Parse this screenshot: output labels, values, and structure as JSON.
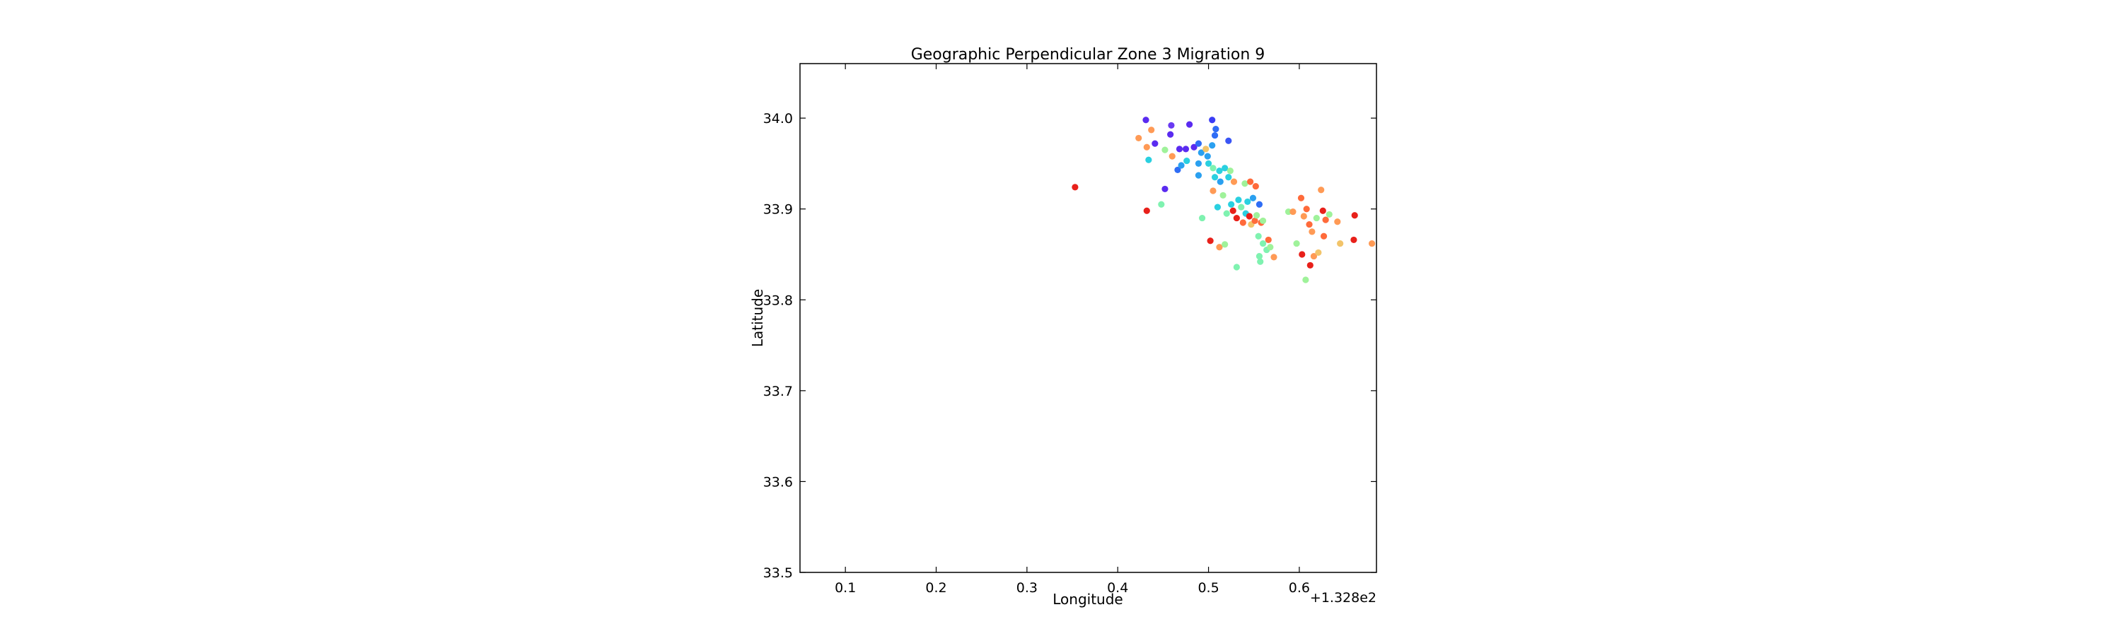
{
  "chart_data": {
    "type": "scatter",
    "title": "Geographic Perpendicular Zone 3 Migration 9",
    "xlabel": "Longitude",
    "ylabel": "Latitude",
    "x_offset_label": "+1.328e2",
    "xlim": [
      0.05,
      0.685
    ],
    "ylim": [
      33.5,
      34.06
    ],
    "xticks": [
      0.1,
      0.2,
      0.3,
      0.4,
      0.5,
      0.6
    ],
    "xtick_labels": [
      "0.1",
      "0.2",
      "0.3",
      "0.4",
      "0.5",
      "0.6"
    ],
    "yticks": [
      33.5,
      33.6,
      33.7,
      33.8,
      33.9,
      34.0
    ],
    "ytick_labels": [
      "33.5",
      "33.6",
      "33.7",
      "33.8",
      "33.9",
      "34.0"
    ],
    "grid": false,
    "colormap": "rainbow",
    "points": [
      {
        "x": 0.353,
        "y": 33.924,
        "color": "#e8201a"
      },
      {
        "x": 0.431,
        "y": 33.998,
        "color": "#5a2bf0"
      },
      {
        "x": 0.441,
        "y": 33.972,
        "color": "#5a2bf0"
      },
      {
        "x": 0.459,
        "y": 33.992,
        "color": "#6a3af2"
      },
      {
        "x": 0.458,
        "y": 33.982,
        "color": "#5a2bf0"
      },
      {
        "x": 0.479,
        "y": 33.993,
        "color": "#5a2bf0"
      },
      {
        "x": 0.504,
        "y": 33.998,
        "color": "#3a3cf5"
      },
      {
        "x": 0.508,
        "y": 33.988,
        "color": "#2f6df5"
      },
      {
        "x": 0.507,
        "y": 33.981,
        "color": "#2f6df5"
      },
      {
        "x": 0.522,
        "y": 33.975,
        "color": "#3a55f5"
      },
      {
        "x": 0.504,
        "y": 33.97,
        "color": "#2aa0f0"
      },
      {
        "x": 0.423,
        "y": 33.978,
        "color": "#ff9a55"
      },
      {
        "x": 0.437,
        "y": 33.987,
        "color": "#ff9a55"
      },
      {
        "x": 0.432,
        "y": 33.968,
        "color": "#ff9a55"
      },
      {
        "x": 0.452,
        "y": 33.965,
        "color": "#9ff29a"
      },
      {
        "x": 0.46,
        "y": 33.958,
        "color": "#ff9a55"
      },
      {
        "x": 0.468,
        "y": 33.966,
        "color": "#5a2bf0"
      },
      {
        "x": 0.475,
        "y": 33.966,
        "color": "#5a2bf0"
      },
      {
        "x": 0.484,
        "y": 33.968,
        "color": "#5a2bf0"
      },
      {
        "x": 0.489,
        "y": 33.972,
        "color": "#2f6df5"
      },
      {
        "x": 0.492,
        "y": 33.962,
        "color": "#2aa0f0"
      },
      {
        "x": 0.497,
        "y": 33.966,
        "color": "#f2c46a"
      },
      {
        "x": 0.499,
        "y": 33.958,
        "color": "#2aa0f0"
      },
      {
        "x": 0.434,
        "y": 33.954,
        "color": "#2ad0e0"
      },
      {
        "x": 0.466,
        "y": 33.943,
        "color": "#2f6df5"
      },
      {
        "x": 0.47,
        "y": 33.948,
        "color": "#2aa0f0"
      },
      {
        "x": 0.476,
        "y": 33.953,
        "color": "#2ad0e0"
      },
      {
        "x": 0.489,
        "y": 33.95,
        "color": "#2aa0f0"
      },
      {
        "x": 0.489,
        "y": 33.937,
        "color": "#2aa0f0"
      },
      {
        "x": 0.5,
        "y": 33.95,
        "color": "#2ad0e0"
      },
      {
        "x": 0.505,
        "y": 33.945,
        "color": "#7ff2b0"
      },
      {
        "x": 0.512,
        "y": 33.942,
        "color": "#2ad0e0"
      },
      {
        "x": 0.518,
        "y": 33.945,
        "color": "#2ad0e0"
      },
      {
        "x": 0.524,
        "y": 33.942,
        "color": "#9ff29a"
      },
      {
        "x": 0.507,
        "y": 33.935,
        "color": "#2ad0e0"
      },
      {
        "x": 0.513,
        "y": 33.93,
        "color": "#2aa0f0"
      },
      {
        "x": 0.522,
        "y": 33.935,
        "color": "#2ad0e0"
      },
      {
        "x": 0.528,
        "y": 33.93,
        "color": "#ff9a55"
      },
      {
        "x": 0.54,
        "y": 33.928,
        "color": "#9ff29a"
      },
      {
        "x": 0.546,
        "y": 33.93,
        "color": "#ff6a3a"
      },
      {
        "x": 0.552,
        "y": 33.925,
        "color": "#ff6a3a"
      },
      {
        "x": 0.452,
        "y": 33.922,
        "color": "#5a2bf0"
      },
      {
        "x": 0.432,
        "y": 33.898,
        "color": "#e8201a"
      },
      {
        "x": 0.448,
        "y": 33.905,
        "color": "#7ff2b0"
      },
      {
        "x": 0.493,
        "y": 33.89,
        "color": "#7ff2b0"
      },
      {
        "x": 0.505,
        "y": 33.92,
        "color": "#ff9a55"
      },
      {
        "x": 0.51,
        "y": 33.902,
        "color": "#2ad0e0"
      },
      {
        "x": 0.516,
        "y": 33.915,
        "color": "#9ff29a"
      },
      {
        "x": 0.52,
        "y": 33.895,
        "color": "#7ff2b0"
      },
      {
        "x": 0.525,
        "y": 33.905,
        "color": "#2ad0e0"
      },
      {
        "x": 0.527,
        "y": 33.898,
        "color": "#e8201a"
      },
      {
        "x": 0.531,
        "y": 33.89,
        "color": "#e8201a"
      },
      {
        "x": 0.533,
        "y": 33.91,
        "color": "#2ad0e0"
      },
      {
        "x": 0.536,
        "y": 33.902,
        "color": "#7ff2b0"
      },
      {
        "x": 0.538,
        "y": 33.885,
        "color": "#ff6a3a"
      },
      {
        "x": 0.541,
        "y": 33.895,
        "color": "#2ad0e0"
      },
      {
        "x": 0.543,
        "y": 33.908,
        "color": "#2ad0e0"
      },
      {
        "x": 0.545,
        "y": 33.892,
        "color": "#e8201a"
      },
      {
        "x": 0.547,
        "y": 33.883,
        "color": "#f2c46a"
      },
      {
        "x": 0.549,
        "y": 33.912,
        "color": "#2aa0f0"
      },
      {
        "x": 0.551,
        "y": 33.887,
        "color": "#ff6a3a"
      },
      {
        "x": 0.553,
        "y": 33.893,
        "color": "#9ff29a"
      },
      {
        "x": 0.556,
        "y": 33.905,
        "color": "#2f6df5"
      },
      {
        "x": 0.558,
        "y": 33.885,
        "color": "#ff6a3a"
      },
      {
        "x": 0.56,
        "y": 33.887,
        "color": "#9ff29a"
      },
      {
        "x": 0.555,
        "y": 33.87,
        "color": "#7ff2b0"
      },
      {
        "x": 0.56,
        "y": 33.862,
        "color": "#7ff2b0"
      },
      {
        "x": 0.564,
        "y": 33.855,
        "color": "#7ff2b0"
      },
      {
        "x": 0.566,
        "y": 33.866,
        "color": "#ff6a3a"
      },
      {
        "x": 0.568,
        "y": 33.858,
        "color": "#9ff29a"
      },
      {
        "x": 0.572,
        "y": 33.847,
        "color": "#ff9a55"
      },
      {
        "x": 0.556,
        "y": 33.848,
        "color": "#7ff2b0"
      },
      {
        "x": 0.557,
        "y": 33.842,
        "color": "#7ff2b0"
      },
      {
        "x": 0.502,
        "y": 33.865,
        "color": "#e8201a"
      },
      {
        "x": 0.512,
        "y": 33.858,
        "color": "#ff9a55"
      },
      {
        "x": 0.518,
        "y": 33.861,
        "color": "#9ff29a"
      },
      {
        "x": 0.531,
        "y": 33.836,
        "color": "#7ff2b0"
      },
      {
        "x": 0.588,
        "y": 33.897,
        "color": "#9ff29a"
      },
      {
        "x": 0.593,
        "y": 33.897,
        "color": "#ff9a55"
      },
      {
        "x": 0.597,
        "y": 33.862,
        "color": "#9ff29a"
      },
      {
        "x": 0.602,
        "y": 33.912,
        "color": "#ff6a3a"
      },
      {
        "x": 0.605,
        "y": 33.892,
        "color": "#ff9a55"
      },
      {
        "x": 0.608,
        "y": 33.9,
        "color": "#ff6a3a"
      },
      {
        "x": 0.603,
        "y": 33.85,
        "color": "#e8201a"
      },
      {
        "x": 0.607,
        "y": 33.822,
        "color": "#9ff29a"
      },
      {
        "x": 0.611,
        "y": 33.883,
        "color": "#ff6a3a"
      },
      {
        "x": 0.614,
        "y": 33.875,
        "color": "#ff9a55"
      },
      {
        "x": 0.612,
        "y": 33.838,
        "color": "#e8201a"
      },
      {
        "x": 0.616,
        "y": 33.848,
        "color": "#ff9a55"
      },
      {
        "x": 0.619,
        "y": 33.89,
        "color": "#9ff29a"
      },
      {
        "x": 0.621,
        "y": 33.852,
        "color": "#f2c46a"
      },
      {
        "x": 0.624,
        "y": 33.921,
        "color": "#ff9a55"
      },
      {
        "x": 0.626,
        "y": 33.898,
        "color": "#e8201a"
      },
      {
        "x": 0.629,
        "y": 33.888,
        "color": "#ff6a3a"
      },
      {
        "x": 0.633,
        "y": 33.894,
        "color": "#9ff29a"
      },
      {
        "x": 0.627,
        "y": 33.87,
        "color": "#ff6a3a"
      },
      {
        "x": 0.642,
        "y": 33.886,
        "color": "#ff9a55"
      },
      {
        "x": 0.645,
        "y": 33.862,
        "color": "#f2c46a"
      },
      {
        "x": 0.661,
        "y": 33.893,
        "color": "#e8201a"
      },
      {
        "x": 0.66,
        "y": 33.866,
        "color": "#e8201a"
      },
      {
        "x": 0.68,
        "y": 33.862,
        "color": "#ff9a55"
      }
    ]
  }
}
